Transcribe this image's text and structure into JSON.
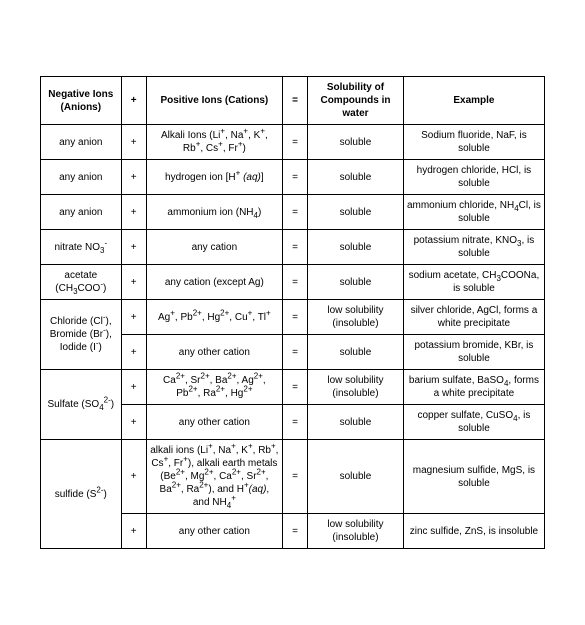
{
  "table": {
    "headers": [
      "Negative Ions (Anions)",
      "+",
      "Positive Ions (Cations)",
      "=",
      "Solubility of Compounds in water",
      "Example"
    ],
    "background_color": "#ffffff",
    "border_color": "#000000",
    "font_family": "Arial",
    "header_fontsize": 10,
    "cell_fontsize": 10,
    "columns": [
      {
        "key": "anion",
        "width_pct": 16
      },
      {
        "key": "plus",
        "width_pct": 5
      },
      {
        "key": "cation",
        "width_pct": 27
      },
      {
        "key": "eq",
        "width_pct": 5
      },
      {
        "key": "sol",
        "width_pct": 19
      },
      {
        "key": "ex",
        "width_pct": 28
      }
    ],
    "rows": [
      {
        "anion": "any anion",
        "cation_html": "Alkali Ions (Li<sup>+</sup>, Na<sup>+</sup>, K<sup>+</sup>, Rb<sup>+</sup>, Cs<sup>+</sup>, Fr<sup>+</sup>)",
        "sol": "soluble",
        "ex_html": "Sodium fluoride, NaF, is soluble"
      },
      {
        "anion": "any anion",
        "cation_html": "hydrogen ion [H<sup>+</sup> <span class=\"it\">(aq)</span>]",
        "sol": "soluble",
        "ex_html": "hydrogen chloride, HCl, is soluble"
      },
      {
        "anion": "any anion",
        "cation_html": "ammonium ion (NH<sub>4</sub>)",
        "sol": "soluble",
        "ex_html": "ammonium chloride, NH<sub>4</sub>Cl, is soluble"
      },
      {
        "anion_html": "nitrate NO<sub>3</sub><sup>-</sup>",
        "cation_html": "any cation",
        "sol": "soluble",
        "ex_html": "potassium nitrate, KNO<sub>3</sub>, is soluble"
      },
      {
        "anion_html": "acetate (CH<sub>3</sub>COO<sup>-</sup>)",
        "cation_html": "any cation (except Ag)",
        "sol": "soluble",
        "ex_html": "sodium acetate, CH<sub>3</sub>COONa, is soluble"
      },
      {
        "anion_html": "Chloride (Cl<sup>-</sup>), Bromide (Br<sup>-</sup>), Iodide (I<sup>-</sup>)",
        "anion_rowspan": 2,
        "cation_html": "Ag<sup>+</sup>, Pb<sup>2+</sup>, Hg<sup>2+</sup>, Cu<sup>+</sup>, Tl<sup>+</sup>",
        "sol": "low solubility (insoluble)",
        "ex_html": "silver chloride, AgCl, forms a white precipitate"
      },
      {
        "cation_html": "any other cation",
        "sol": "soluble",
        "ex_html": "potassium bromide, KBr, is soluble"
      },
      {
        "anion_html": "Sulfate (SO<sub>4</sub><sup>2-</sup>)",
        "anion_rowspan": 2,
        "cation_html": "Ca<sup>2+</sup>, Sr<sup>2+</sup>, Ba<sup>2+</sup>, Ag<sup>2+</sup>, Pb<sup>2+</sup>, Ra<sup>2+</sup>, Hg<sup>2+</sup>",
        "sol": "low solubility (insoluble)",
        "ex_html": "barium sulfate, BaSO<sub>4</sub>, forms a white precipitate"
      },
      {
        "cation_html": "any other cation",
        "sol": "soluble",
        "ex_html": "copper sulfate, CuSO<sub>4</sub>, is soluble"
      },
      {
        "anion_html": "sulfide (S<sup>2-</sup>)",
        "anion_rowspan": 2,
        "cation_html": "alkali ions (Li<sup>+</sup>, Na<sup>+</sup>, K<sup>+</sup>, Rb<sup>+</sup>, Cs<sup>+</sup>, Fr<sup>+</sup>), alkali earth metals (Be<sup>2+</sup>, Mg<sup>2+</sup>, Ca<sup>2+</sup>, Sr<sup>2+</sup>, Ba<sup>2+</sup>, Ra<sup>2+</sup>), and H<sup>+</sup><span class=\"it\">(aq)</span>, and NH<sub>4</sub><sup>+</sup>",
        "sol": "soluble",
        "ex_html": "magnesium sulfide, MgS, is soluble"
      },
      {
        "cation_html": "any other cation",
        "sol": "low solubility (insoluble)",
        "ex_html": "zinc sulfide, ZnS, is insoluble"
      }
    ],
    "plus_symbol": "+",
    "eq_symbol": "="
  }
}
